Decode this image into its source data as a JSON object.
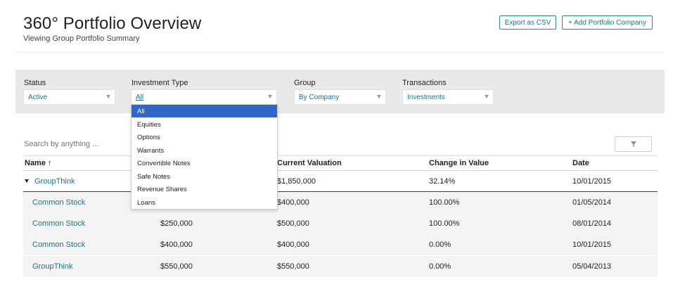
{
  "header": {
    "title": "360° Portfolio Overview",
    "subtitle": "Viewing Group Portfolio Summary",
    "export_label": "Export as CSV",
    "add_label": "+ Add Portfolio Company"
  },
  "filters": {
    "status": {
      "label": "Status",
      "value": "Active"
    },
    "investment_type": {
      "label": "Investment Type",
      "value": "All"
    },
    "group": {
      "label": "Group",
      "value": "By Company"
    },
    "transactions": {
      "label": "Transactions",
      "value": "Investments"
    }
  },
  "dropdown": {
    "options": [
      "All",
      "Equities",
      "Options",
      "Warrants",
      "Convertible Notes",
      "Safe Notes",
      "Revenue Shares",
      "Loans"
    ],
    "selected": "All"
  },
  "search": {
    "placeholder": "Search by anything ..."
  },
  "table": {
    "headers": {
      "name": "Name ↑",
      "current_valuation": "Current Valuation",
      "change": "Change in Value",
      "date": "Date"
    },
    "group_row": {
      "name": "GroupThink",
      "current_valuation": "$1,850,000",
      "change": "32.14%",
      "date": "10/01/2015"
    },
    "rows": [
      {
        "name": "Common Stock",
        "cost": "",
        "current_valuation": "$400,000",
        "change": "100.00%",
        "date": "01/05/2014"
      },
      {
        "name": "Common Stock",
        "cost": "$250,000",
        "current_valuation": "$500,000",
        "change": "100.00%",
        "date": "08/01/2014"
      },
      {
        "name": "Common Stock",
        "cost": "$400,000",
        "current_valuation": "$400,000",
        "change": "0.00%",
        "date": "10/01/2015"
      },
      {
        "name": "GroupThink",
        "cost": "$550,000",
        "current_valuation": "$550,000",
        "change": "0.00%",
        "date": "05/04/2013"
      }
    ]
  },
  "colors": {
    "accent_link": "#1f6f8b",
    "button_border": "#2e8b7a",
    "dropdown_selected": "#2f66c9"
  },
  "icons": {
    "filter": "funnel-icon",
    "expand": "caret-down-icon",
    "select": "chevron-down-icon"
  }
}
